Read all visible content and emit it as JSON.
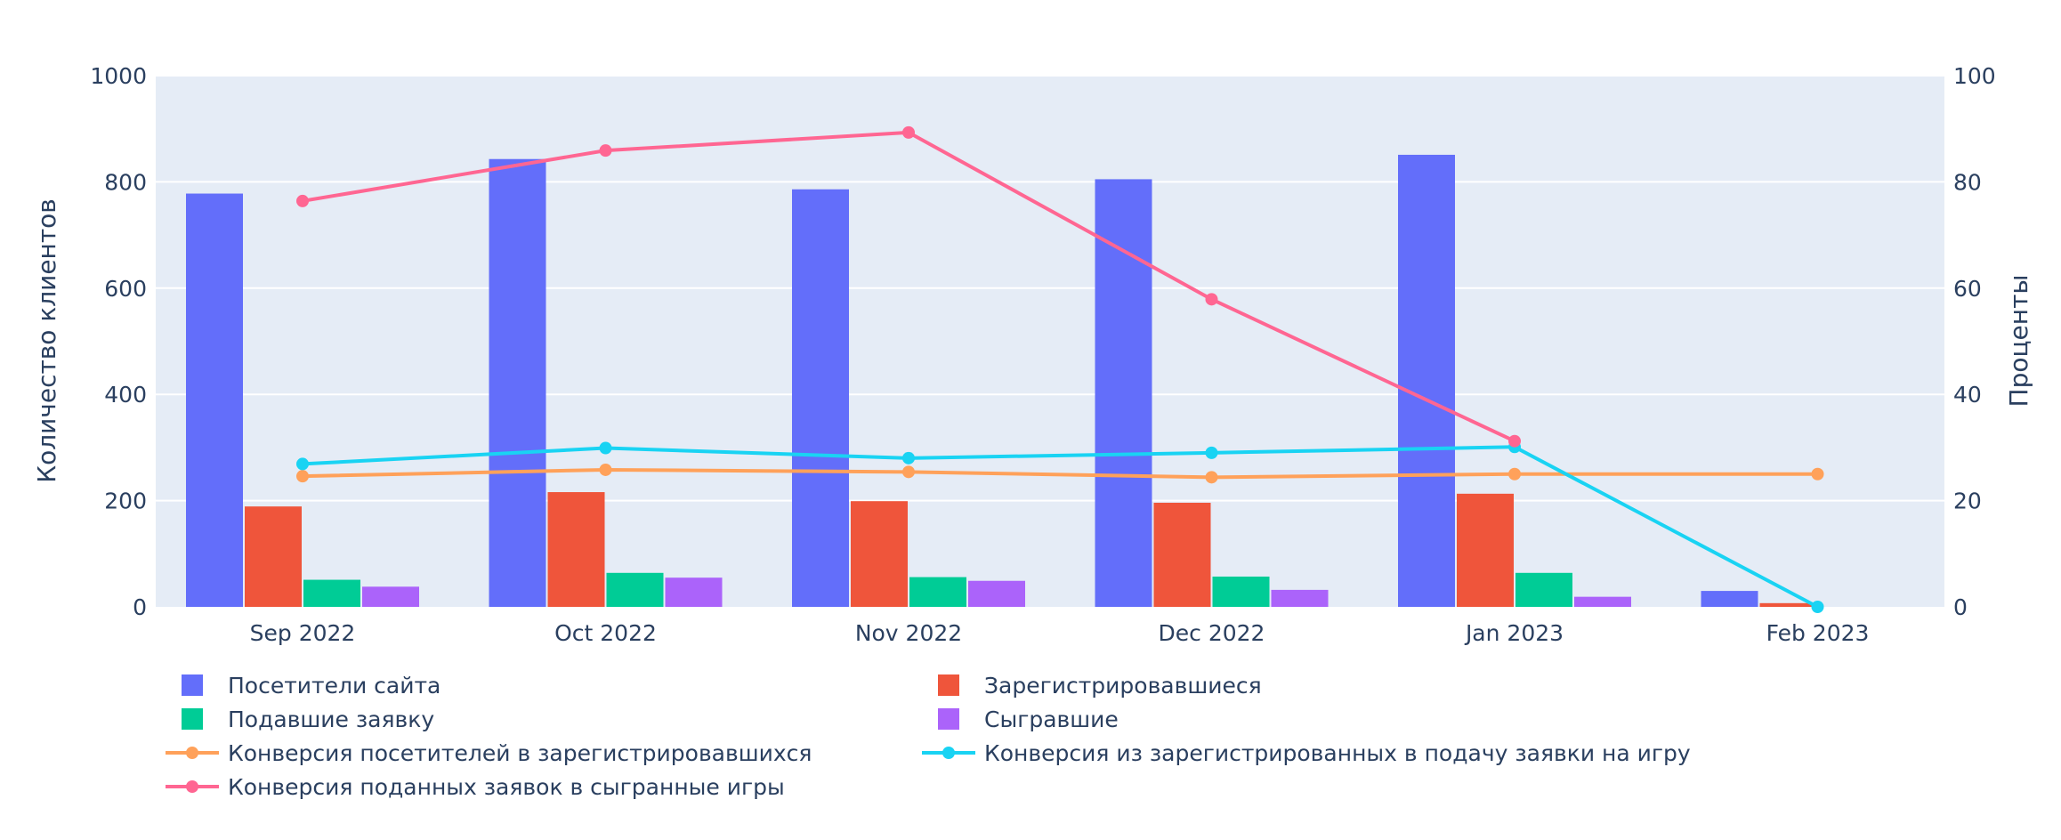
{
  "chart_data": {
    "type": "bar",
    "categories": [
      "Sep 2022",
      "Oct 2022",
      "Nov 2022",
      "Dec 2022",
      "Jan 2023",
      "Feb 2023"
    ],
    "ylabel": "Количество клиентов",
    "y2label": "Проценты",
    "ylim": [
      0,
      1000
    ],
    "y2lim": [
      0,
      100
    ],
    "yticks": [
      "0",
      "200",
      "400",
      "600",
      "800",
      "1000"
    ],
    "y2ticks": [
      "0",
      "20",
      "40",
      "60",
      "80",
      "100"
    ],
    "grid": true,
    "legend_position": "bottom",
    "bar_series": [
      {
        "name": "Посетители сайта",
        "color": "#636efa",
        "values": [
          778,
          843,
          786,
          805,
          851,
          30
        ]
      },
      {
        "name": "Зарегистрировавшиеся",
        "color": "#ef553b",
        "values": [
          189,
          216,
          199,
          196,
          213,
          7
        ]
      },
      {
        "name": "Подавшие заявку",
        "color": "#00cc96",
        "values": [
          51,
          64,
          56,
          57,
          64,
          0
        ]
      },
      {
        "name": "Сыгравшие",
        "color": "#ab63fa",
        "values": [
          38,
          55,
          49,
          32,
          19,
          0
        ]
      }
    ],
    "line_series": [
      {
        "name": "Конверсия посетителей в зарегистрировавшихся",
        "color": "#ffa15a",
        "axis": "right",
        "values": [
          24.6,
          25.8,
          25.4,
          24.4,
          25.0,
          25.0
        ]
      },
      {
        "name": "Конверсия из зарегистрированных в подачу заявки на игру",
        "color": "#19d3f3",
        "axis": "right",
        "values": [
          26.9,
          29.9,
          28.0,
          29.0,
          30.1,
          0.0
        ]
      },
      {
        "name": "Конверсия поданных заявок в сыгранные игры",
        "color": "#ff6692",
        "axis": "right",
        "values": [
          76.4,
          85.9,
          89.3,
          57.9,
          31.2,
          null
        ]
      }
    ]
  }
}
